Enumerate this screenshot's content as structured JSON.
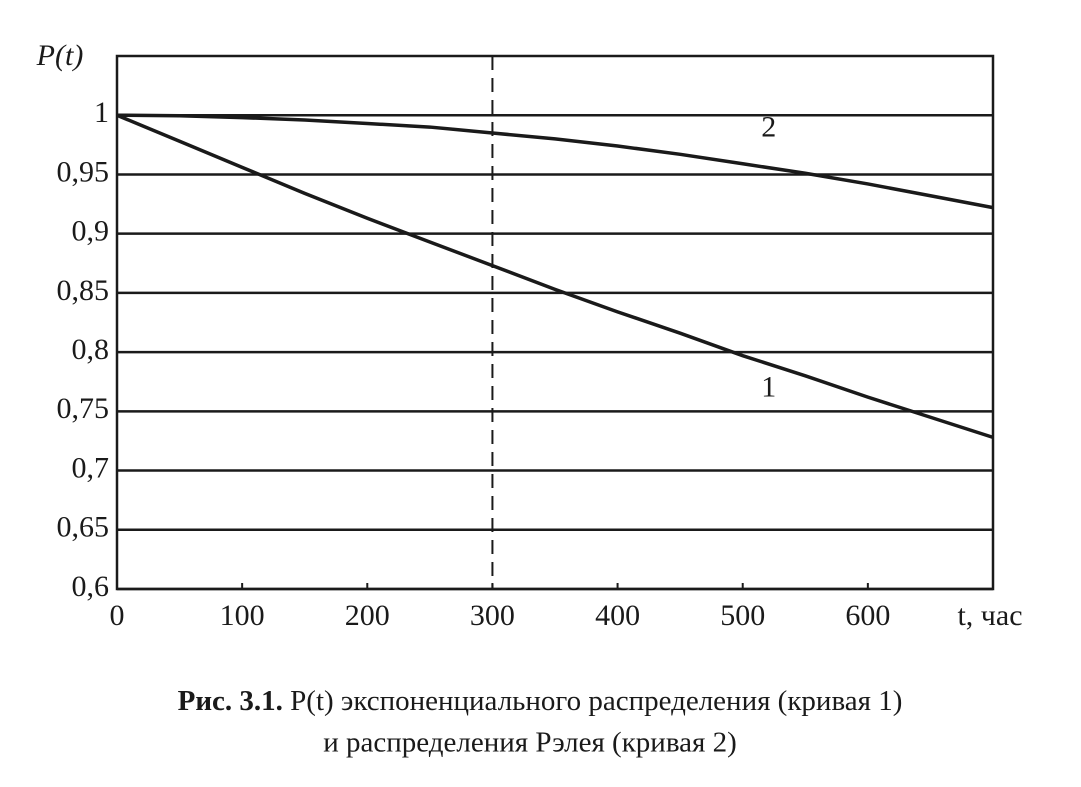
{
  "chart_data": {
    "type": "line",
    "ylabel": "P(t)",
    "xlabel": "t, час",
    "x": [
      0,
      50,
      100,
      150,
      200,
      250,
      300,
      350,
      400,
      450,
      500,
      550,
      600,
      650,
      700
    ],
    "series": [
      {
        "name": "1",
        "color": "#1a1a1a",
        "values": [
          1,
          0.978,
          0.956,
          0.934,
          0.913,
          0.893,
          0.873,
          0.853,
          0.834,
          0.816,
          0.797,
          0.78,
          0.762,
          0.745,
          0.728
        ]
      },
      {
        "name": "2",
        "color": "#1a1a1a",
        "values": [
          1,
          0.9996,
          0.998,
          0.996,
          0.993,
          0.99,
          0.985,
          0.98,
          0.974,
          0.967,
          0.959,
          0.951,
          0.942,
          0.932,
          0.922
        ]
      }
    ],
    "xlim": [
      0,
      700
    ],
    "ylim": [
      0.6,
      1.05
    ],
    "xticks": [
      0,
      100,
      200,
      300,
      400,
      500,
      600
    ],
    "yticks": [
      {
        "value": 0.6,
        "label": "0,6"
      },
      {
        "value": 0.65,
        "label": "0,65"
      },
      {
        "value": 0.7,
        "label": "0,7"
      },
      {
        "value": 0.75,
        "label": "0,75"
      },
      {
        "value": 0.8,
        "label": "0,8"
      },
      {
        "value": 0.85,
        "label": "0,85"
      },
      {
        "value": 0.9,
        "label": "0,9"
      },
      {
        "value": 0.95,
        "label": "0,95"
      },
      1
    ],
    "grid": true,
    "reference_line_x": 300,
    "caption_label": "Рис. 3.1.",
    "caption_line1": "P(t) экспоненциального распределения (кривая 1)",
    "caption_line2": "и распределения Рэлея (кривая 2)"
  }
}
